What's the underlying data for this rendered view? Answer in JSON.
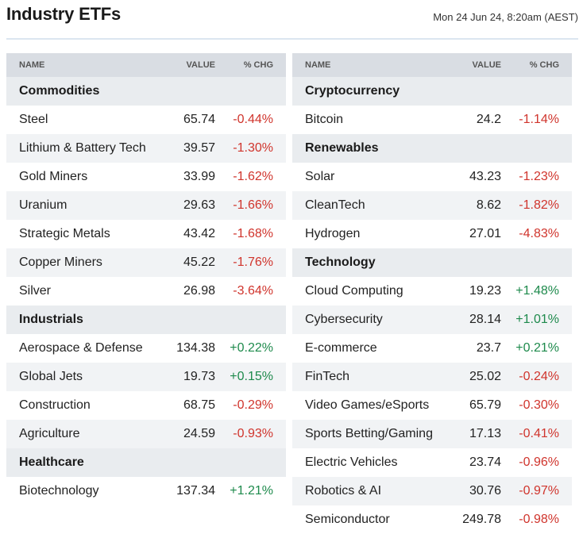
{
  "header": {
    "title": "Industry ETFs",
    "timestamp": "Mon 24 Jun 24, 8:20am (AEST)"
  },
  "columns": {
    "name": "NAME",
    "value": "VALUE",
    "change": "% CHG"
  },
  "tables": [
    {
      "groups": [
        {
          "name": "Commodities",
          "rows": [
            {
              "name": "Steel",
              "value": "65.74",
              "change": "-0.44%"
            },
            {
              "name": "Lithium & Battery Tech",
              "value": "39.57",
              "change": "-1.30%"
            },
            {
              "name": "Gold Miners",
              "value": "33.99",
              "change": "-1.62%"
            },
            {
              "name": "Uranium",
              "value": "29.63",
              "change": "-1.66%"
            },
            {
              "name": "Strategic Metals",
              "value": "43.42",
              "change": "-1.68%"
            },
            {
              "name": "Copper Miners",
              "value": "45.22",
              "change": "-1.76%"
            },
            {
              "name": "Silver",
              "value": "26.98",
              "change": "-3.64%"
            }
          ]
        },
        {
          "name": "Industrials",
          "rows": [
            {
              "name": "Aerospace & Defense",
              "value": "134.38",
              "change": "+0.22%"
            },
            {
              "name": "Global Jets",
              "value": "19.73",
              "change": "+0.15%"
            },
            {
              "name": "Construction",
              "value": "68.75",
              "change": "-0.29%"
            },
            {
              "name": "Agriculture",
              "value": "24.59",
              "change": "-0.93%"
            }
          ]
        },
        {
          "name": "Healthcare",
          "rows": [
            {
              "name": "Biotechnology",
              "value": "137.34",
              "change": "+1.21%"
            }
          ]
        }
      ]
    },
    {
      "groups": [
        {
          "name": "Cryptocurrency",
          "rows": [
            {
              "name": "Bitcoin",
              "value": "24.2",
              "change": "-1.14%"
            }
          ]
        },
        {
          "name": "Renewables",
          "rows": [
            {
              "name": "Solar",
              "value": "43.23",
              "change": "-1.23%"
            },
            {
              "name": "CleanTech",
              "value": "8.62",
              "change": "-1.82%"
            },
            {
              "name": "Hydrogen",
              "value": "27.01",
              "change": "-4.83%"
            }
          ]
        },
        {
          "name": "Technology",
          "rows": [
            {
              "name": "Cloud Computing",
              "value": "19.23",
              "change": "+1.48%"
            },
            {
              "name": "Cybersecurity",
              "value": "28.14",
              "change": "+1.01%"
            },
            {
              "name": "E-commerce",
              "value": "23.7",
              "change": "+0.21%"
            },
            {
              "name": "FinTech",
              "value": "25.02",
              "change": "-0.24%"
            },
            {
              "name": "Video Games/eSports",
              "value": "65.79",
              "change": "-0.30%"
            },
            {
              "name": "Sports Betting/Gaming",
              "value": "17.13",
              "change": "-0.41%"
            },
            {
              "name": "Electric Vehicles",
              "value": "23.74",
              "change": "-0.96%"
            },
            {
              "name": "Robotics & AI",
              "value": "30.76",
              "change": "-0.97%"
            },
            {
              "name": "Semiconductor",
              "value": "249.78",
              "change": "-0.98%"
            }
          ]
        }
      ]
    }
  ],
  "colors": {
    "negative": "#d0342c",
    "positive": "#1e8a4c",
    "header_bg": "#d9dde3",
    "group_bg": "#e9ecef",
    "alt_row_bg": "#f1f3f5"
  }
}
